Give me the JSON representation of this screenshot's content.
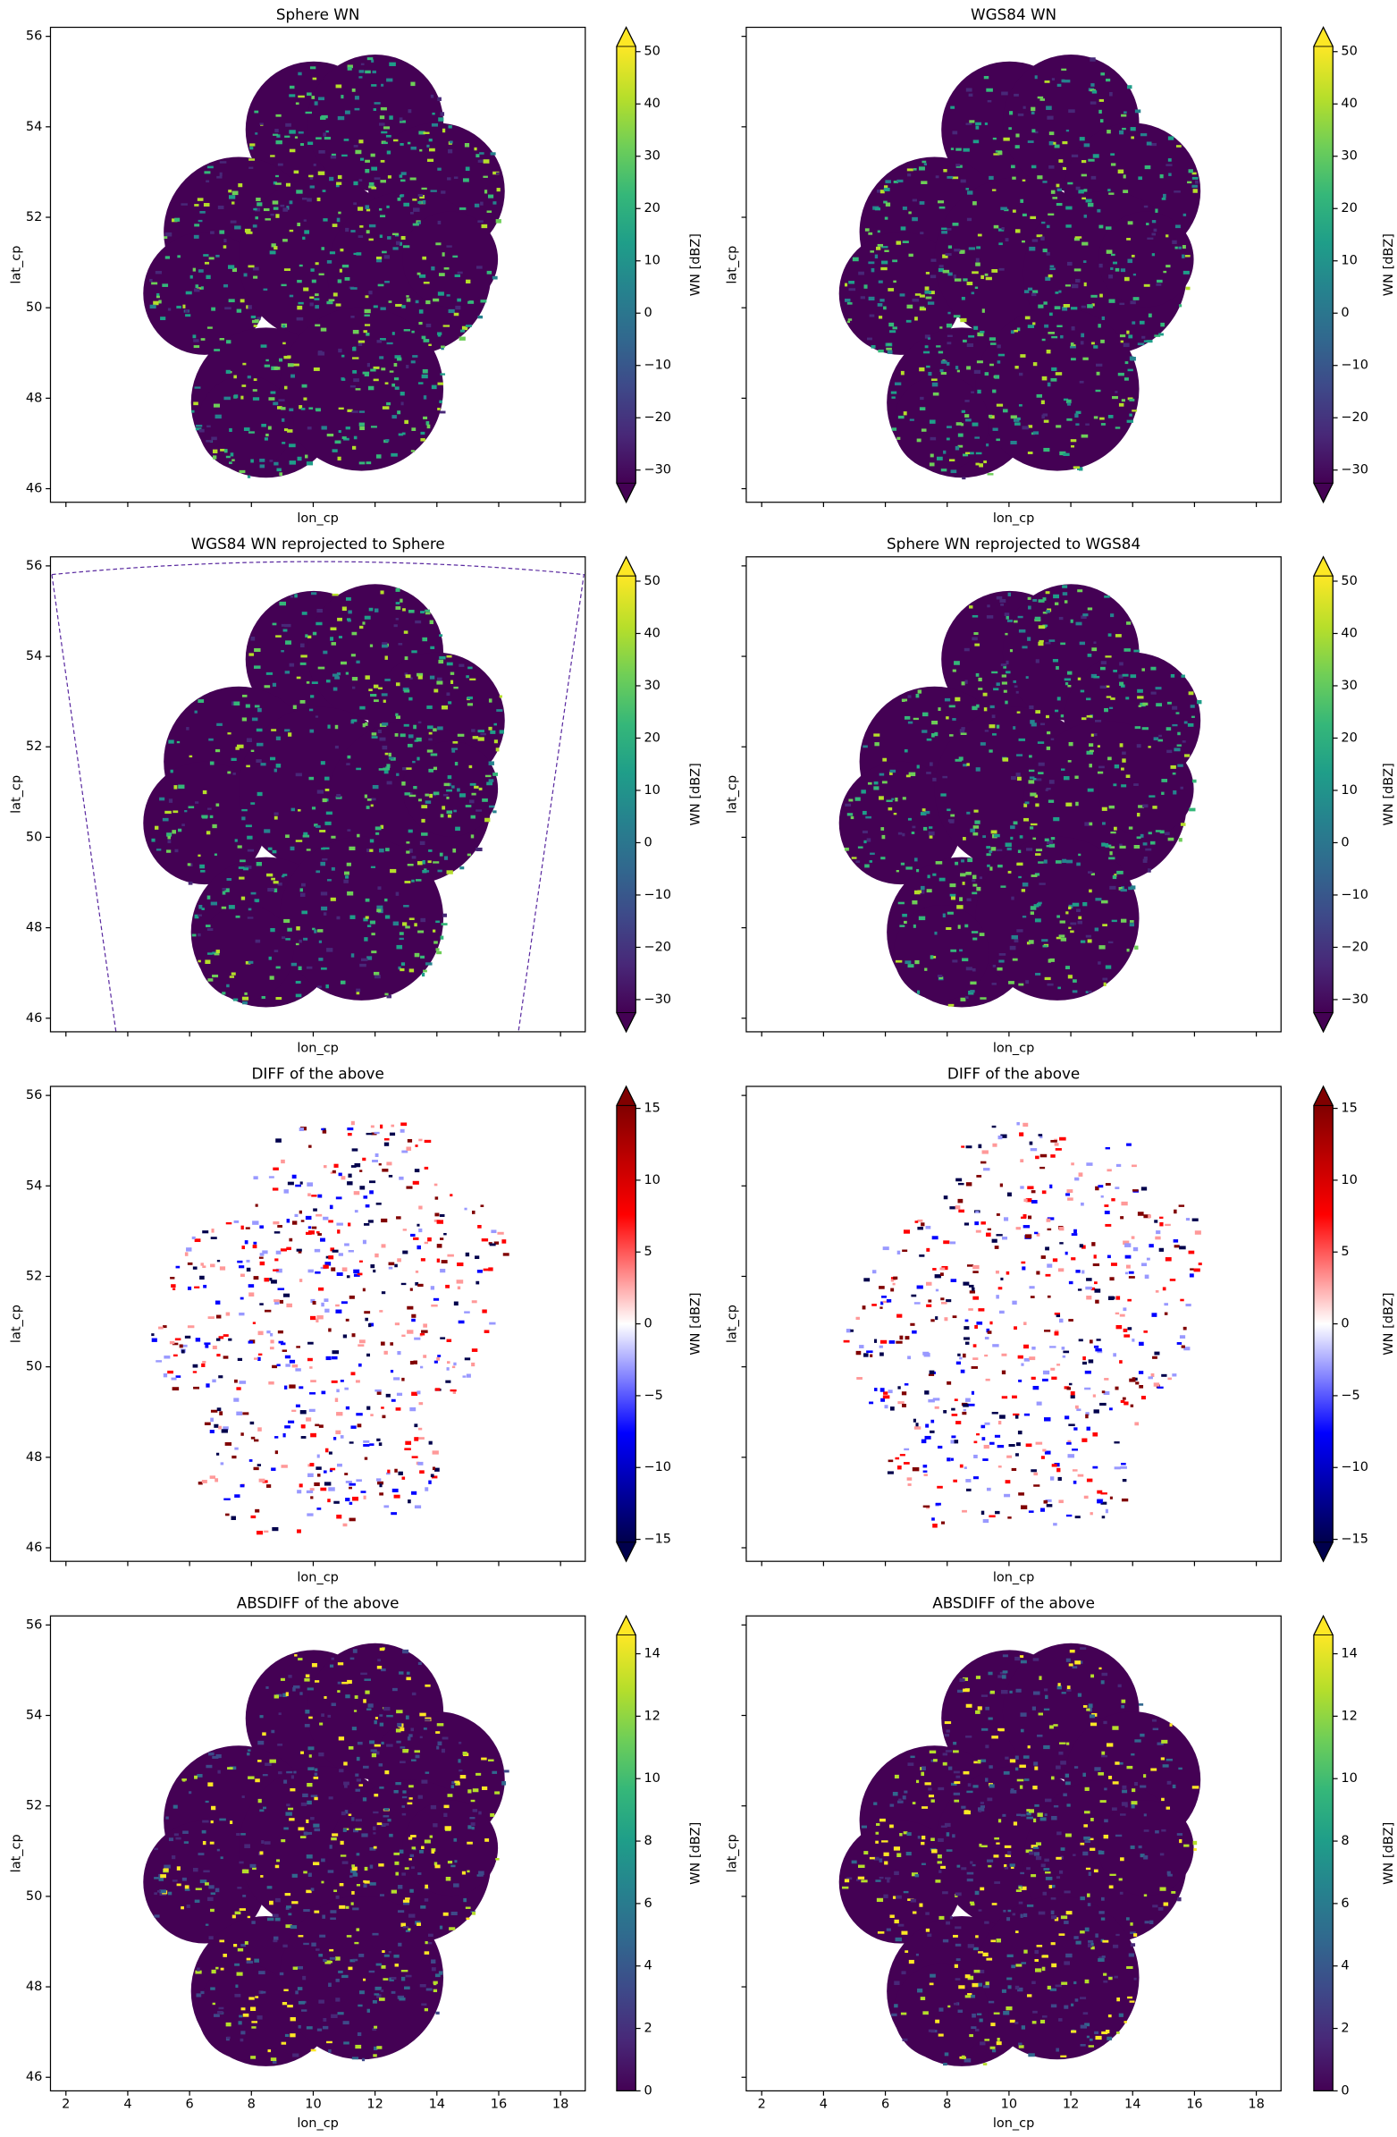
{
  "chart_data": [
    {
      "type": "heatmap",
      "title": "Sphere WN",
      "xlabel": "lon_cp",
      "ylabel": "lat_cp",
      "xlim": [
        1.5,
        18.8
      ],
      "ylim": [
        45.7,
        56.2
      ],
      "xticks": [
        2,
        4,
        6,
        8,
        10,
        12,
        14,
        16,
        18
      ],
      "yticks": [
        46,
        48,
        50,
        52,
        54,
        56
      ],
      "show_xtick_labels": false,
      "show_ytick_labels": true,
      "colorbar": {
        "label": "WN [dBZ]",
        "colormap": "viridis",
        "extend": "both",
        "lim": [
          -32.5,
          51
        ],
        "ticks": [
          {
            "value": -30,
            "label": "−30"
          },
          {
            "value": -20,
            "label": "−20"
          },
          {
            "value": -10,
            "label": "−10"
          },
          0,
          10,
          20,
          30,
          40,
          50
        ]
      }
    },
    {
      "type": "heatmap",
      "title": "WGS84 WN",
      "xlabel": "lon_cp",
      "ylabel": "lat_cp",
      "xlim": [
        1.5,
        18.8
      ],
      "ylim": [
        45.7,
        56.2
      ],
      "xticks": [
        2,
        4,
        6,
        8,
        10,
        12,
        14,
        16,
        18
      ],
      "yticks": [
        46,
        48,
        50,
        52,
        54,
        56
      ],
      "show_xtick_labels": false,
      "show_ytick_labels": false,
      "colorbar": {
        "label": "WN [dBZ]",
        "colormap": "viridis",
        "extend": "both",
        "lim": [
          -32.5,
          51
        ],
        "ticks": [
          {
            "value": -30,
            "label": "−30"
          },
          {
            "value": -20,
            "label": "−20"
          },
          {
            "value": -10,
            "label": "−10"
          },
          0,
          10,
          20,
          30,
          40,
          50
        ]
      }
    },
    {
      "type": "heatmap",
      "title": "WGS84 WN reprojected to Sphere",
      "xlabel": "lon_cp",
      "ylabel": "lat_cp",
      "xlim": [
        1.5,
        18.8
      ],
      "ylim": [
        45.7,
        56.2
      ],
      "xticks": [
        2,
        4,
        6,
        8,
        10,
        12,
        14,
        16,
        18
      ],
      "yticks": [
        46,
        48,
        50,
        52,
        54,
        56
      ],
      "show_xtick_labels": false,
      "show_ytick_labels": true,
      "colorbar": {
        "label": "WN [dBZ]",
        "colormap": "viridis",
        "extend": "both",
        "lim": [
          -32.5,
          51
        ],
        "ticks": [
          {
            "value": -30,
            "label": "−30"
          },
          {
            "value": -20,
            "label": "−20"
          },
          {
            "value": -10,
            "label": "−10"
          },
          0,
          10,
          20,
          30,
          40,
          50
        ]
      }
    },
    {
      "type": "heatmap",
      "title": "Sphere WN reprojected to WGS84",
      "xlabel": "lon_cp",
      "ylabel": "lat_cp",
      "xlim": [
        1.5,
        18.8
      ],
      "ylim": [
        45.7,
        56.2
      ],
      "xticks": [
        2,
        4,
        6,
        8,
        10,
        12,
        14,
        16,
        18
      ],
      "yticks": [
        46,
        48,
        50,
        52,
        54,
        56
      ],
      "show_xtick_labels": false,
      "show_ytick_labels": false,
      "colorbar": {
        "label": "WN [dBZ]",
        "colormap": "viridis",
        "extend": "both",
        "lim": [
          -32.5,
          51
        ],
        "ticks": [
          {
            "value": -30,
            "label": "−30"
          },
          {
            "value": -20,
            "label": "−20"
          },
          {
            "value": -10,
            "label": "−10"
          },
          0,
          10,
          20,
          30,
          40,
          50
        ]
      }
    },
    {
      "type": "heatmap",
      "title": "DIFF of the above",
      "xlabel": "lon_cp",
      "ylabel": "lat_cp",
      "xlim": [
        1.5,
        18.8
      ],
      "ylim": [
        45.7,
        56.2
      ],
      "xticks": [
        2,
        4,
        6,
        8,
        10,
        12,
        14,
        16,
        18
      ],
      "yticks": [
        46,
        48,
        50,
        52,
        54,
        56
      ],
      "show_xtick_labels": false,
      "show_ytick_labels": true,
      "colorbar": {
        "label": "WN [dBZ]",
        "colormap": "seismic",
        "extend": "both",
        "lim": [
          -15.2,
          15.2
        ],
        "ticks": [
          {
            "value": -15,
            "label": "−15"
          },
          {
            "value": -10,
            "label": "−10"
          },
          {
            "value": -5,
            "label": "−5"
          },
          0,
          5,
          10,
          15
        ]
      }
    },
    {
      "type": "heatmap",
      "title": "DIFF of the above",
      "xlabel": "lon_cp",
      "ylabel": "lat_cp",
      "xlim": [
        1.5,
        18.8
      ],
      "ylim": [
        45.7,
        56.2
      ],
      "xticks": [
        2,
        4,
        6,
        8,
        10,
        12,
        14,
        16,
        18
      ],
      "yticks": [
        46,
        48,
        50,
        52,
        54,
        56
      ],
      "show_xtick_labels": false,
      "show_ytick_labels": false,
      "colorbar": {
        "label": "WN [dBZ]",
        "colormap": "seismic",
        "extend": "both",
        "lim": [
          -15.2,
          15.2
        ],
        "ticks": [
          {
            "value": -15,
            "label": "−15"
          },
          {
            "value": -10,
            "label": "−10"
          },
          {
            "value": -5,
            "label": "−5"
          },
          0,
          5,
          10,
          15
        ]
      }
    },
    {
      "type": "heatmap",
      "title": "ABSDIFF of the above",
      "xlabel": "lon_cp",
      "ylabel": "lat_cp",
      "xlim": [
        1.5,
        18.8
      ],
      "ylim": [
        45.7,
        56.2
      ],
      "xticks": [
        2,
        4,
        6,
        8,
        10,
        12,
        14,
        16,
        18
      ],
      "yticks": [
        46,
        48,
        50,
        52,
        54,
        56
      ],
      "show_xtick_labels": true,
      "show_ytick_labels": true,
      "colorbar": {
        "label": "WN [dBZ]",
        "colormap": "viridis",
        "extend": "max",
        "lim": [
          0,
          14.6
        ],
        "ticks": [
          0,
          2,
          4,
          6,
          8,
          10,
          12,
          14
        ]
      }
    },
    {
      "type": "heatmap",
      "title": "ABSDIFF of the above",
      "xlabel": "lon_cp",
      "ylabel": "lat_cp",
      "xlim": [
        1.5,
        18.8
      ],
      "ylim": [
        45.7,
        56.2
      ],
      "xticks": [
        2,
        4,
        6,
        8,
        10,
        12,
        14,
        16,
        18
      ],
      "yticks": [
        46,
        48,
        50,
        52,
        54,
        56
      ],
      "show_xtick_labels": true,
      "show_ytick_labels": false,
      "colorbar": {
        "label": "WN [dBZ]",
        "colormap": "viridis",
        "extend": "max",
        "lim": [
          0,
          14.6
        ],
        "ticks": [
          0,
          2,
          4,
          6,
          8,
          10,
          12,
          14
        ]
      }
    }
  ]
}
